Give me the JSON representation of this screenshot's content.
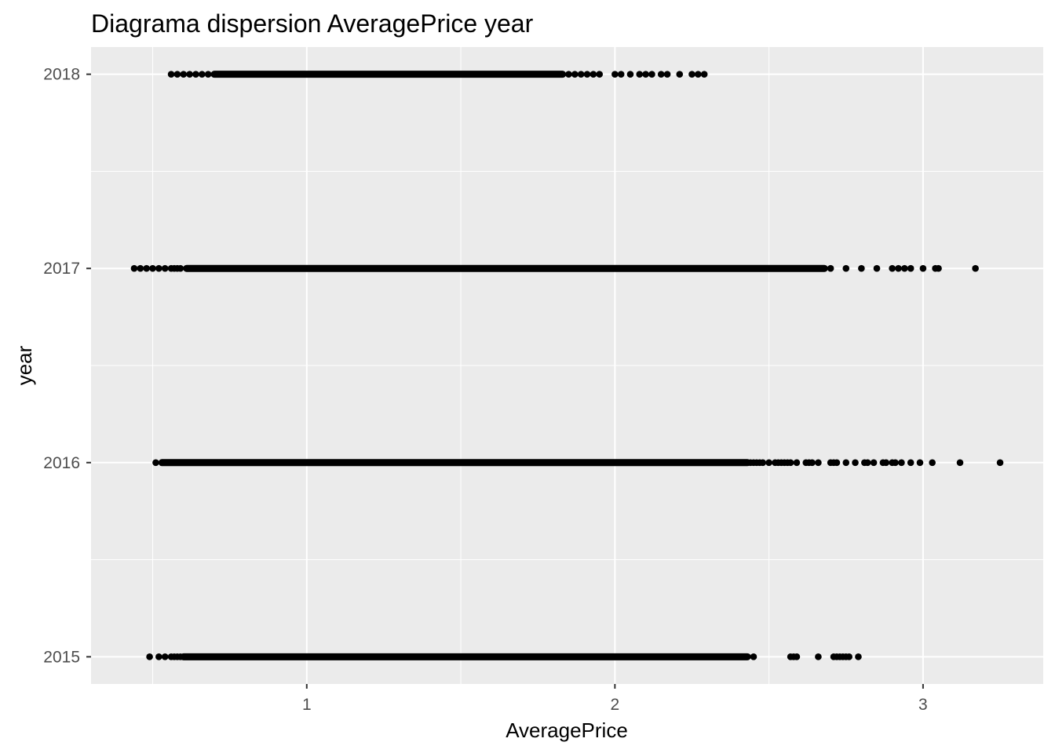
{
  "chart_data": {
    "type": "scatter",
    "title": "Diagrama dispersion AveragePrice year",
    "xlabel": "AveragePrice",
    "ylabel": "year",
    "xlim": [
      0.3,
      3.39
    ],
    "ylim": [
      2014.86,
      2018.14
    ],
    "x_ticks": [
      1,
      2,
      3
    ],
    "x_tick_labels": [
      "1",
      "2",
      "3"
    ],
    "y_ticks": [
      2015,
      2016,
      2017,
      2018
    ],
    "y_tick_labels": [
      "2015",
      "2016",
      "2017",
      "2018"
    ],
    "grid": true,
    "legend": "none",
    "colors": {
      "panel": "#ebebeb",
      "grid": "#ffffff",
      "point": "#000000",
      "tick": "#333333"
    },
    "series": [
      {
        "year": 2015,
        "dense_range": [
          0.6,
          2.43
        ],
        "points": [
          0.49,
          0.52,
          0.54,
          0.56,
          0.57,
          0.58,
          0.59,
          2.45,
          2.57,
          2.58,
          2.59,
          2.66,
          2.71,
          2.72,
          2.73,
          2.74,
          2.75,
          2.76,
          2.79
        ]
      },
      {
        "year": 2016,
        "dense_range": [
          0.53,
          2.43
        ],
        "points": [
          0.51,
          2.44,
          2.45,
          2.46,
          2.47,
          2.48,
          2.5,
          2.52,
          2.53,
          2.54,
          2.55,
          2.56,
          2.57,
          2.59,
          2.62,
          2.63,
          2.64,
          2.66,
          2.7,
          2.71,
          2.72,
          2.75,
          2.78,
          2.81,
          2.82,
          2.84,
          2.87,
          2.88,
          2.9,
          2.91,
          2.93,
          2.96,
          2.99,
          3.03,
          3.12,
          3.25
        ]
      },
      {
        "year": 2017,
        "dense_range": [
          0.61,
          2.68
        ],
        "points": [
          0.44,
          0.46,
          0.48,
          0.5,
          0.52,
          0.54,
          0.56,
          0.57,
          0.58,
          0.59,
          2.7,
          2.75,
          2.8,
          2.85,
          2.9,
          2.92,
          2.94,
          2.96,
          3.0,
          3.04,
          3.05,
          3.17
        ]
      },
      {
        "year": 2018,
        "dense_range": [
          0.7,
          1.83
        ],
        "points": [
          0.56,
          0.58,
          0.6,
          0.62,
          0.64,
          0.66,
          0.68,
          1.85,
          1.87,
          1.89,
          1.91,
          1.93,
          1.95,
          2.0,
          2.02,
          2.05,
          2.08,
          2.1,
          2.12,
          2.15,
          2.17,
          2.21,
          2.25,
          2.27,
          2.29
        ]
      }
    ]
  }
}
